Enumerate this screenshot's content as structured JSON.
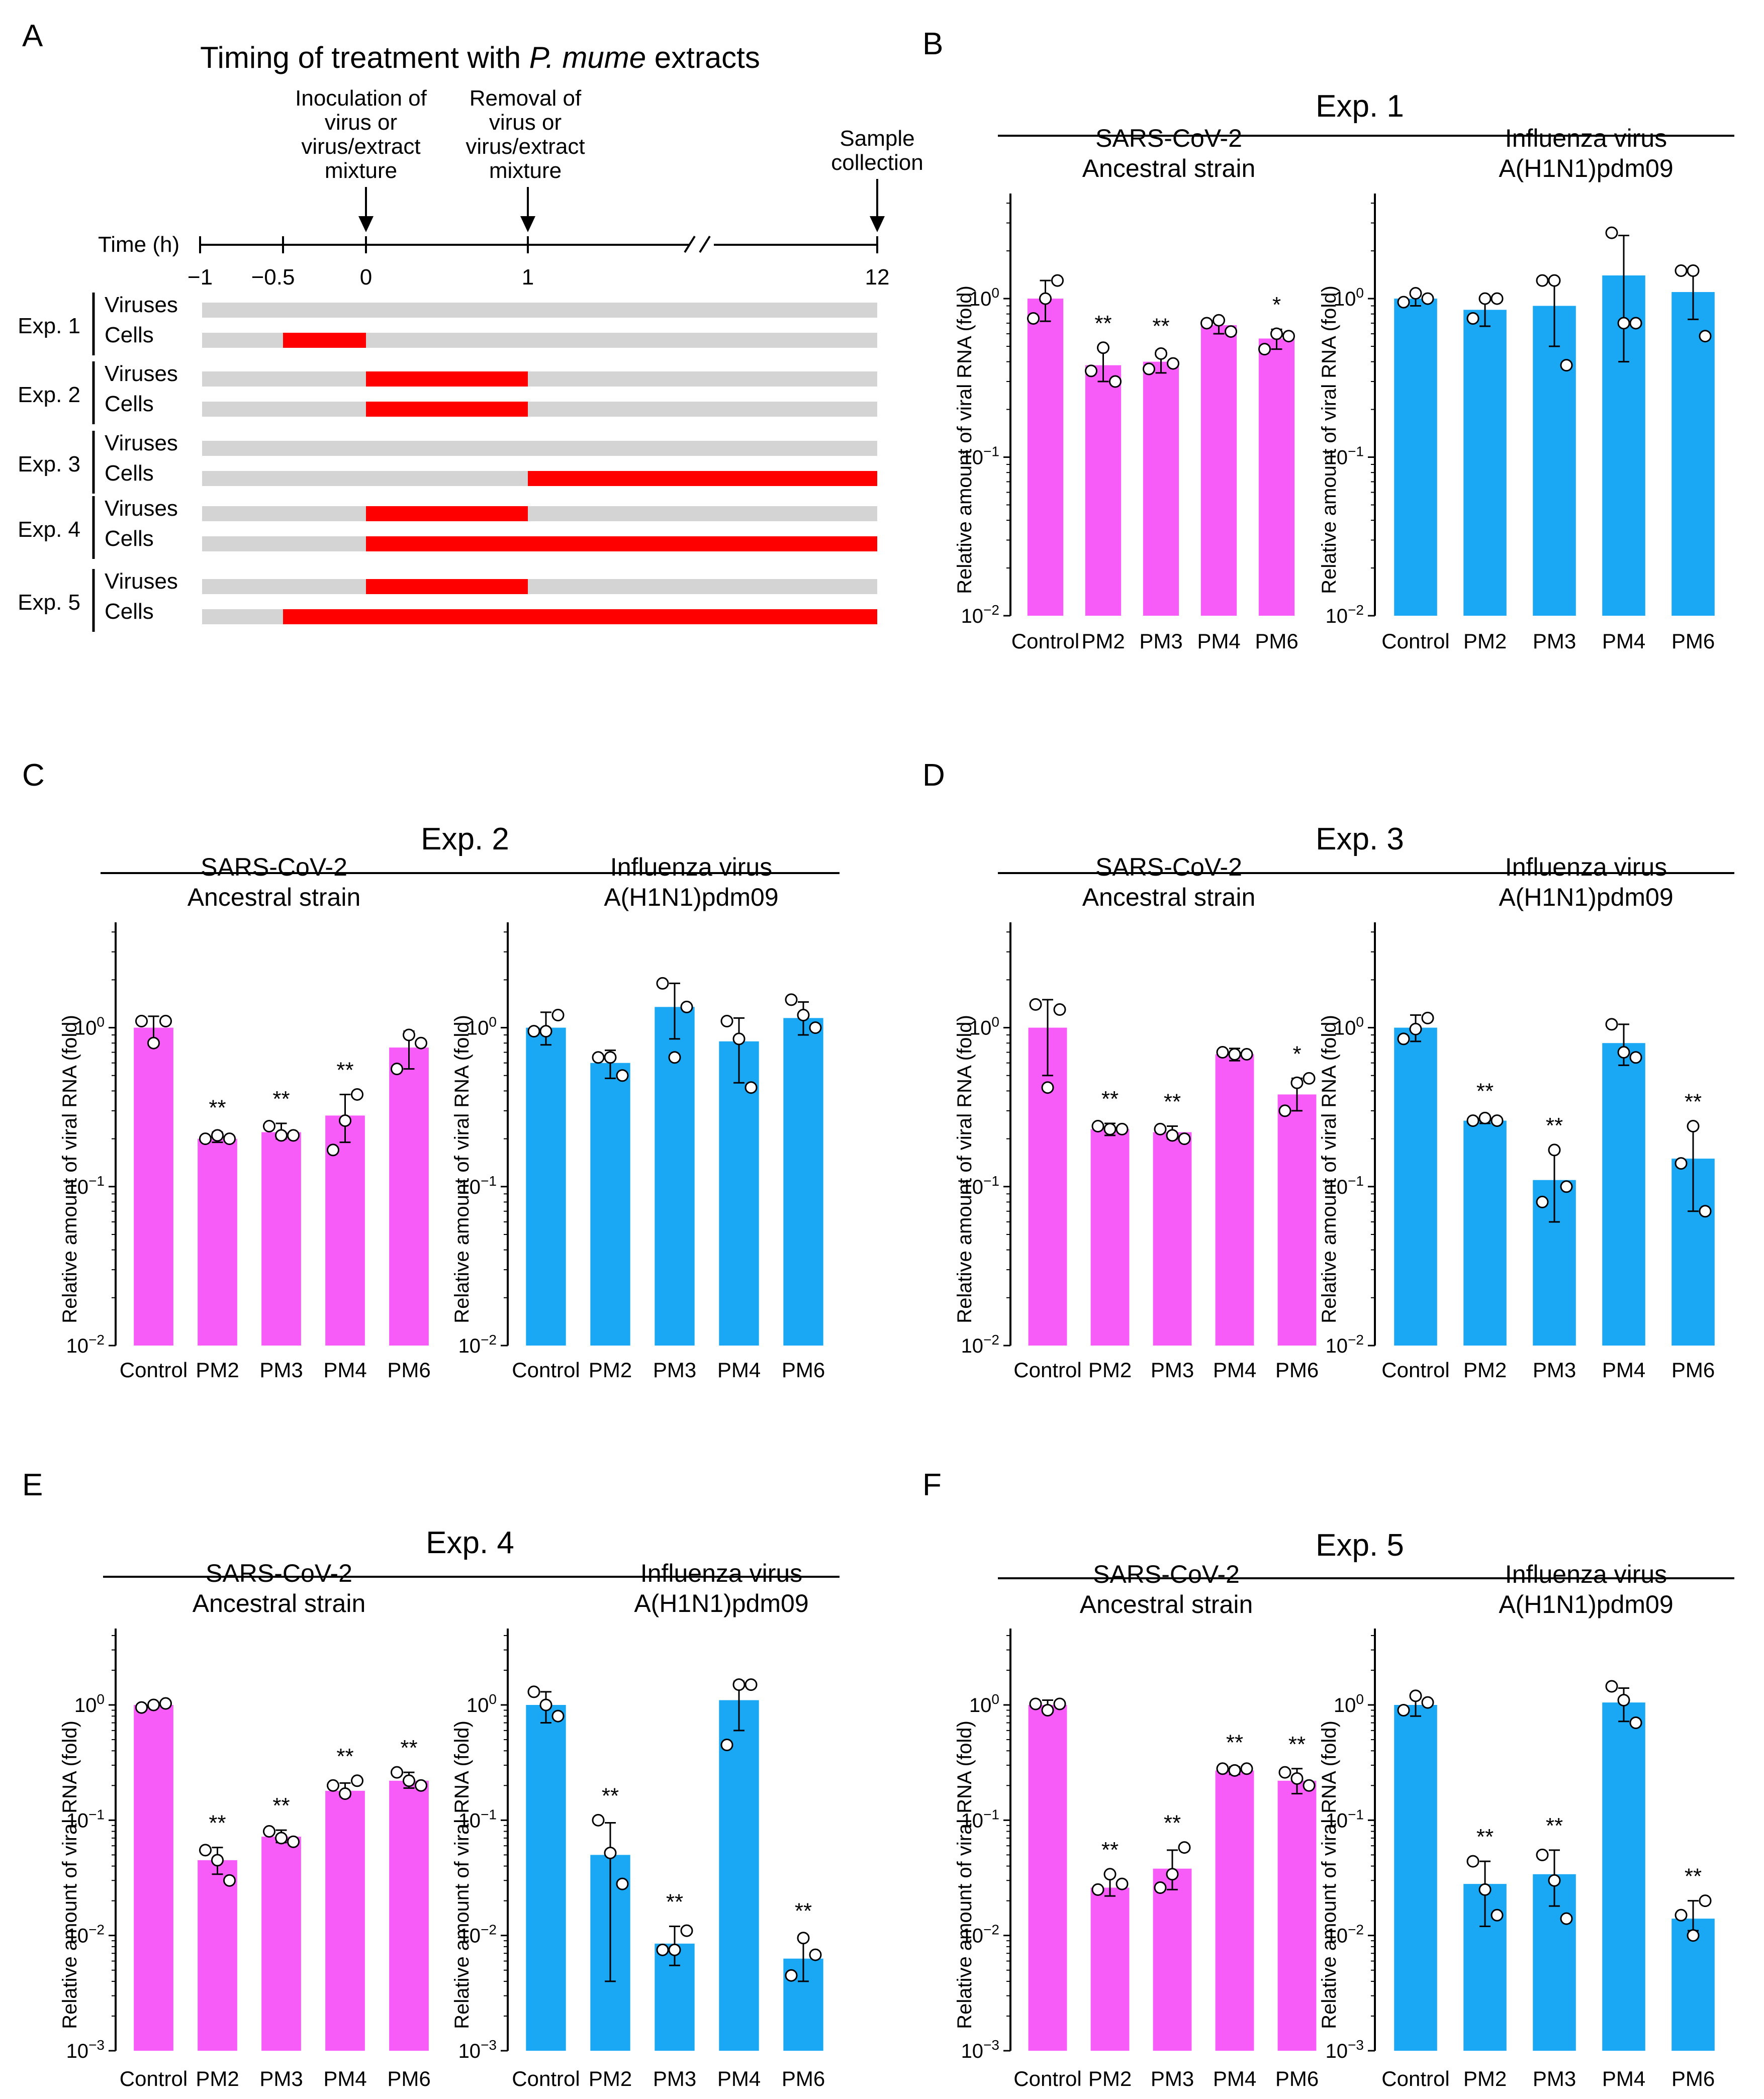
{
  "colors": {
    "sars": "#f75cf8",
    "flu": "#1aa8f4",
    "timeline_bar": "#d4d4d4",
    "treatment": "#ff0000",
    "axis": "#000000"
  },
  "panelA": {
    "letter": "A",
    "title_pre": "Timing of treatment with ",
    "title_species": "P. mume",
    "title_post": " extracts",
    "events": [
      {
        "lines": [
          "Inoculation of",
          "virus or",
          "virus/extract",
          "mixture"
        ]
      },
      {
        "lines": [
          "Removal of",
          "virus or",
          "virus/extract",
          "mixture"
        ]
      },
      {
        "lines": [
          "Sample",
          "collection"
        ]
      }
    ],
    "time_label": "Time (h)",
    "ticks": [
      "−1",
      "−0.5",
      "0",
      "1",
      "12"
    ],
    "experiments": [
      {
        "name": "Exp. 1",
        "rows": [
          {
            "label": "Viruses",
            "segs": []
          },
          {
            "label": "Cells",
            "segs": [
              [
                -0.5,
                0
              ]
            ]
          }
        ]
      },
      {
        "name": "Exp. 2",
        "rows": [
          {
            "label": "Viruses",
            "segs": [
              [
                0,
                1
              ]
            ]
          },
          {
            "label": "Cells",
            "segs": [
              [
                0,
                1
              ]
            ]
          }
        ]
      },
      {
        "name": "Exp. 3",
        "rows": [
          {
            "label": "Viruses",
            "segs": []
          },
          {
            "label": "Cells",
            "segs": [
              [
                1,
                12
              ]
            ]
          }
        ]
      },
      {
        "name": "Exp. 4",
        "rows": [
          {
            "label": "Viruses",
            "segs": [
              [
                0,
                1
              ]
            ]
          },
          {
            "label": "Cells",
            "segs": [
              [
                0,
                12
              ]
            ]
          }
        ]
      },
      {
        "name": "Exp. 5",
        "rows": [
          {
            "label": "Viruses",
            "segs": [
              [
                0,
                1
              ]
            ]
          },
          {
            "label": "Cells",
            "segs": [
              [
                -0.5,
                12
              ]
            ]
          }
        ]
      }
    ]
  },
  "chart_data": [
    {
      "panel": "B",
      "experiment": "Exp. 1",
      "type": "bar",
      "log_scale": true,
      "ylabel": "Relative amount of viral RNA (fold)",
      "yticks": [
        "10^0",
        "10^-1",
        "10^-2"
      ],
      "ylim": [
        0.01,
        4.6
      ],
      "categories": [
        "Control",
        "PM2",
        "PM3",
        "PM4",
        "PM6"
      ],
      "subplots": [
        {
          "title": [
            "SARS-CoV-2",
            "Ancestral strain"
          ],
          "color": "sars",
          "values": [
            1.0,
            0.38,
            0.4,
            0.68,
            0.56
          ],
          "err_low": [
            0.72,
            0.3,
            0.34,
            0.6,
            0.48
          ],
          "err_high": [
            1.3,
            0.48,
            0.47,
            0.75,
            0.64
          ],
          "points": [
            [
              0.75,
              1.3,
              1.0
            ],
            [
              0.35,
              0.3,
              0.49
            ],
            [
              0.36,
              0.39,
              0.45
            ],
            [
              0.7,
              0.62,
              0.73
            ],
            [
              0.48,
              0.58,
              0.6
            ]
          ],
          "sig": [
            "",
            "**",
            "**",
            "",
            "*"
          ]
        },
        {
          "title": [
            "Influenza virus",
            "A(H1N1)pdm09"
          ],
          "color": "flu",
          "values": [
            1.0,
            0.85,
            0.9,
            1.4,
            1.1
          ],
          "err_low": [
            0.9,
            0.67,
            0.5,
            0.4,
            0.74
          ],
          "err_high": [
            1.08,
            1.02,
            1.35,
            2.5,
            1.45
          ],
          "points": [
            [
              0.95,
              1.0,
              1.08
            ],
            [
              0.75,
              1.0,
              1.0
            ],
            [
              1.3,
              0.38,
              1.3
            ],
            [
              2.6,
              0.7,
              0.7
            ],
            [
              1.5,
              0.58,
              1.5
            ]
          ],
          "sig": [
            "",
            "",
            "",
            "",
            ""
          ]
        }
      ]
    },
    {
      "panel": "C",
      "experiment": "Exp. 2",
      "type": "bar",
      "log_scale": true,
      "ylabel": "Relative amount of viral RNA (fold)",
      "yticks": [
        "10^0",
        "10^-1",
        "10^-2"
      ],
      "ylim": [
        0.01,
        4.6
      ],
      "categories": [
        "Control",
        "PM2",
        "PM3",
        "PM4",
        "PM6"
      ],
      "subplots": [
        {
          "title": [
            "SARS-CoV-2",
            "Ancestral strain"
          ],
          "color": "sars",
          "values": [
            1.0,
            0.2,
            0.22,
            0.28,
            0.75
          ],
          "err_low": [
            0.8,
            0.19,
            0.2,
            0.19,
            0.55
          ],
          "err_high": [
            1.18,
            0.22,
            0.25,
            0.38,
            0.95
          ],
          "points": [
            [
              1.1,
              1.1,
              0.8
            ],
            [
              0.2,
              0.2,
              0.21
            ],
            [
              0.24,
              0.21,
              0.21
            ],
            [
              0.17,
              0.38,
              0.26
            ],
            [
              0.55,
              0.8,
              0.9
            ]
          ],
          "sig": [
            "",
            "**",
            "**",
            "**",
            ""
          ]
        },
        {
          "title": [
            "Influenza virus",
            "A(H1N1)pdm09"
          ],
          "color": "flu",
          "values": [
            1.0,
            0.6,
            1.35,
            0.82,
            1.15
          ],
          "err_low": [
            0.78,
            0.48,
            0.85,
            0.45,
            0.9
          ],
          "err_high": [
            1.25,
            0.72,
            1.9,
            1.15,
            1.45
          ],
          "points": [
            [
              0.95,
              1.2,
              0.95
            ],
            [
              0.65,
              0.5,
              0.65
            ],
            [
              1.9,
              1.35,
              0.65
            ],
            [
              1.1,
              0.42,
              0.85
            ],
            [
              1.5,
              1.0,
              1.2
            ]
          ],
          "sig": [
            "",
            "",
            "",
            "",
            ""
          ]
        }
      ]
    },
    {
      "panel": "D",
      "experiment": "Exp. 3",
      "type": "bar",
      "log_scale": true,
      "ylabel": "Relative amount of viral RNA (fold)",
      "yticks": [
        "10^0",
        "10^-1",
        "10^-2"
      ],
      "ylim": [
        0.01,
        4.6
      ],
      "categories": [
        "Control",
        "PM2",
        "PM3",
        "PM4",
        "PM6"
      ],
      "subplots": [
        {
          "title": [
            "SARS-CoV-2",
            "Ancestral strain"
          ],
          "color": "sars",
          "values": [
            1.0,
            0.23,
            0.22,
            0.68,
            0.38
          ],
          "err_low": [
            0.5,
            0.21,
            0.2,
            0.62,
            0.3
          ],
          "err_high": [
            1.5,
            0.25,
            0.24,
            0.74,
            0.48
          ],
          "points": [
            [
              1.4,
              1.3,
              0.42
            ],
            [
              0.24,
              0.23,
              0.23
            ],
            [
              0.23,
              0.2,
              0.21
            ],
            [
              0.7,
              0.68,
              0.68
            ],
            [
              0.3,
              0.48,
              0.45
            ]
          ],
          "sig": [
            "",
            "**",
            "**",
            "",
            "*"
          ]
        },
        {
          "title": [
            "Influenza virus",
            "A(H1N1)pdm09"
          ],
          "color": "flu",
          "values": [
            1.0,
            0.26,
            0.11,
            0.8,
            0.15
          ],
          "err_low": [
            0.82,
            0.25,
            0.06,
            0.58,
            0.07
          ],
          "err_high": [
            1.2,
            0.28,
            0.17,
            1.05,
            0.24
          ],
          "points": [
            [
              0.85,
              1.15,
              0.98
            ],
            [
              0.26,
              0.26,
              0.27
            ],
            [
              0.08,
              0.1,
              0.17
            ],
            [
              1.05,
              0.65,
              0.7
            ],
            [
              0.14,
              0.07,
              0.24
            ]
          ],
          "sig": [
            "",
            "**",
            "**",
            "",
            "**"
          ]
        }
      ]
    },
    {
      "panel": "E",
      "experiment": "Exp. 4",
      "type": "bar",
      "log_scale": true,
      "ylabel": "Relative amount of viral RNA (fold)",
      "yticks": [
        "10^0",
        "10^-1",
        "10^-2",
        "10^-3"
      ],
      "ylim": [
        0.001,
        4.6
      ],
      "categories": [
        "Control",
        "PM2",
        "PM3",
        "PM4",
        "PM6"
      ],
      "subplots": [
        {
          "title": [
            "SARS-CoV-2",
            "Ancestral strain"
          ],
          "color": "sars",
          "values": [
            1.0,
            0.045,
            0.072,
            0.18,
            0.22
          ],
          "err_low": [
            0.95,
            0.034,
            0.064,
            0.16,
            0.19
          ],
          "err_high": [
            1.05,
            0.058,
            0.082,
            0.21,
            0.26
          ],
          "points": [
            [
              0.95,
              1.03,
              1.0
            ],
            [
              0.055,
              0.03,
              0.045
            ],
            [
              0.08,
              0.065,
              0.07
            ],
            [
              0.2,
              0.22,
              0.17
            ],
            [
              0.26,
              0.2,
              0.22
            ]
          ],
          "sig": [
            "",
            "**",
            "**",
            "**",
            "**"
          ]
        },
        {
          "title": [
            "Influenza virus",
            "A(H1N1)pdm09"
          ],
          "color": "flu",
          "values": [
            1.0,
            0.05,
            0.0085,
            1.1,
            0.0063
          ],
          "err_low": [
            0.7,
            0.004,
            0.0055,
            0.6,
            0.004
          ],
          "err_high": [
            1.3,
            0.095,
            0.012,
            1.6,
            0.01
          ],
          "points": [
            [
              1.3,
              0.8,
              1.0
            ],
            [
              0.1,
              0.028,
              0.052
            ],
            [
              0.0075,
              0.011,
              0.0075
            ],
            [
              0.45,
              1.5,
              1.5
            ],
            [
              0.0045,
              0.0068,
              0.0095
            ]
          ],
          "sig": [
            "",
            "**",
            "**",
            "",
            "**"
          ]
        }
      ]
    },
    {
      "panel": "F",
      "experiment": "Exp. 5",
      "type": "bar",
      "log_scale": true,
      "ylabel": "Relative amount of viral RNA (fold)",
      "yticks": [
        "10^0",
        "10^-1",
        "10^-2",
        "10^-3"
      ],
      "ylim": [
        0.001,
        4.6
      ],
      "categories": [
        "Control",
        "PM2",
        "PM3",
        "PM4",
        "PM6"
      ],
      "subplots": [
        {
          "title": [
            "SARS-CoV-2",
            "Ancestral strain"
          ],
          "color": "sars",
          "values": [
            1.0,
            0.026,
            0.038,
            0.27,
            0.22
          ],
          "err_low": [
            0.87,
            0.022,
            0.025,
            0.25,
            0.17
          ],
          "err_high": [
            1.1,
            0.034,
            0.055,
            0.29,
            0.28
          ],
          "points": [
            [
              1.02,
              1.02,
              0.9
            ],
            [
              0.025,
              0.028,
              0.034
            ],
            [
              0.026,
              0.058,
              0.034
            ],
            [
              0.28,
              0.28,
              0.27
            ],
            [
              0.26,
              0.2,
              0.23
            ]
          ],
          "sig": [
            "",
            "**",
            "**",
            "**",
            "**"
          ]
        },
        {
          "title": [
            "Influenza virus",
            "A(H1N1)pdm09"
          ],
          "color": "flu",
          "values": [
            1.0,
            0.028,
            0.034,
            1.05,
            0.014
          ],
          "err_low": [
            0.8,
            0.012,
            0.018,
            0.72,
            0.011
          ],
          "err_high": [
            1.2,
            0.044,
            0.055,
            1.4,
            0.02
          ],
          "points": [
            [
              0.9,
              1.05,
              1.2
            ],
            [
              0.044,
              0.015,
              0.025
            ],
            [
              0.05,
              0.014,
              0.03
            ],
            [
              1.45,
              0.7,
              1.1
            ],
            [
              0.015,
              0.02,
              0.01
            ]
          ],
          "sig": [
            "",
            "**",
            "**",
            "",
            "**"
          ]
        }
      ]
    }
  ]
}
